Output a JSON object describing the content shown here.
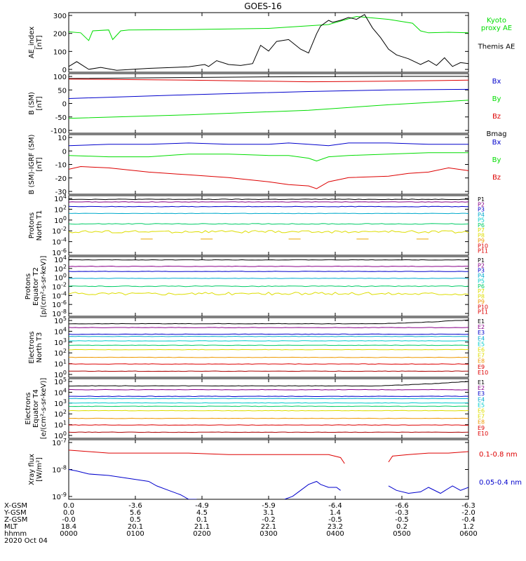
{
  "title": "GOES-16",
  "colors": {
    "black": "#000000",
    "green": "#00dd00",
    "blue": "#0000cc",
    "red": "#dd0000",
    "cyan": "#00cccc",
    "yellow": "#dddd00",
    "orange": "#ee9900",
    "purple": "#880088",
    "navy": "#000088"
  },
  "chart_data": [
    {
      "id": "ae",
      "type": "line",
      "ylabel": [
        "AE_index",
        "[nT]"
      ],
      "yticks": [
        "300",
        "200",
        "100",
        "0"
      ],
      "ylim": [
        0,
        310
      ],
      "legend": [
        {
          "lines": [
            "Kyoto",
            "proxy AE"
          ],
          "color": "#00dd00"
        },
        {
          "lines": [
            "Themis AE"
          ],
          "color": "#000000"
        }
      ],
      "series": [
        {
          "color": "#00dd00",
          "x": [
            0,
            0.03,
            0.05,
            0.06,
            0.1,
            0.11,
            0.13,
            0.15,
            0.3,
            0.5,
            0.55,
            0.65,
            0.72,
            0.8,
            0.86,
            0.88,
            0.9,
            0.95,
            1.0
          ],
          "y": [
            210,
            205,
            165,
            215,
            220,
            170,
            215,
            220,
            222,
            228,
            235,
            248,
            290,
            275,
            255,
            215,
            205,
            208,
            205
          ]
        },
        {
          "color": "#000000",
          "x": [
            0,
            0.02,
            0.05,
            0.08,
            0.12,
            0.2,
            0.3,
            0.34,
            0.35,
            0.37,
            0.4,
            0.43,
            0.46,
            0.48,
            0.5,
            0.52,
            0.55,
            0.58,
            0.6,
            0.62,
            0.63,
            0.65,
            0.66,
            0.68,
            0.7,
            0.72,
            0.74,
            0.76,
            0.78,
            0.8,
            0.82,
            0.85,
            0.88,
            0.9,
            0.92,
            0.94,
            0.96,
            0.98,
            1.0
          ],
          "y": [
            30,
            55,
            15,
            25,
            10,
            20,
            28,
            40,
            30,
            60,
            40,
            35,
            45,
            140,
            110,
            160,
            170,
            120,
            100,
            200,
            240,
            270,
            260,
            270,
            285,
            275,
            300,
            230,
            180,
            120,
            90,
            70,
            40,
            60,
            35,
            75,
            30,
            50,
            45
          ]
        }
      ]
    },
    {
      "id": "b",
      "type": "line",
      "ylabel": [
        "B (SM)",
        "[nT]"
      ],
      "yticks": [
        "100",
        "50",
        "0",
        "-50",
        "-100"
      ],
      "ylim": [
        -110,
        110
      ],
      "legend": [
        {
          "lines": [
            "Bx"
          ],
          "color": "#0000cc"
        },
        {
          "lines": [
            "By"
          ],
          "color": "#00dd00"
        },
        {
          "lines": [
            "Bz"
          ],
          "color": "#dd0000"
        },
        {
          "lines": [
            "Bmag"
          ],
          "color": "#000000"
        }
      ],
      "series": [
        {
          "color": "#000000",
          "x": [
            0,
            0.5,
            0.8,
            1.0
          ],
          "y": [
            92,
            98,
            100,
            100
          ]
        },
        {
          "color": "#dd0000",
          "x": [
            0,
            0.3,
            0.6,
            0.8,
            1.0
          ],
          "y": [
            90,
            86,
            80,
            82,
            86
          ]
        },
        {
          "color": "#0000cc",
          "x": [
            0,
            0.3,
            0.6,
            0.8,
            1.0
          ],
          "y": [
            18,
            32,
            44,
            50,
            52
          ]
        },
        {
          "color": "#00dd00",
          "x": [
            0,
            0.3,
            0.6,
            0.8,
            1.0
          ],
          "y": [
            -55,
            -42,
            -25,
            -5,
            12
          ]
        }
      ]
    },
    {
      "id": "bres",
      "type": "line",
      "ylabel": [
        "B (SM)-IGRF (SM)",
        "[nT]"
      ],
      "yticks": [
        "10",
        "0",
        "-10",
        "-20",
        "-30"
      ],
      "ylim": [
        -31,
        12
      ],
      "legend": [
        {
          "lines": [
            "Bx"
          ],
          "color": "#0000cc"
        },
        {
          "lines": [
            "By"
          ],
          "color": "#00dd00"
        },
        {
          "lines": [
            "Bz"
          ],
          "color": "#dd0000"
        }
      ],
      "series": [
        {
          "color": "#0000cc",
          "x": [
            0,
            0.1,
            0.2,
            0.3,
            0.4,
            0.5,
            0.55,
            0.6,
            0.65,
            0.7,
            0.8,
            0.9,
            1.0
          ],
          "y": [
            4,
            5,
            5,
            6,
            5,
            5,
            6,
            5,
            4,
            6,
            6,
            5,
            5
          ]
        },
        {
          "color": "#00dd00",
          "x": [
            0,
            0.1,
            0.2,
            0.3,
            0.4,
            0.5,
            0.55,
            0.6,
            0.62,
            0.65,
            0.7,
            0.8,
            0.9,
            1.0
          ],
          "y": [
            -3,
            -4,
            -4,
            -2,
            -2,
            -3,
            -3,
            -5,
            -7,
            -4,
            -3,
            -2,
            -1,
            -1
          ]
        },
        {
          "color": "#dd0000",
          "x": [
            0,
            0.03,
            0.1,
            0.2,
            0.3,
            0.4,
            0.5,
            0.55,
            0.6,
            0.62,
            0.65,
            0.7,
            0.8,
            0.85,
            0.9,
            0.95,
            1.0
          ],
          "y": [
            -13,
            -11,
            -12,
            -15,
            -17,
            -19,
            -22,
            -24,
            -25,
            -27,
            -22,
            -19,
            -18,
            -16,
            -15,
            -12,
            -14
          ]
        }
      ]
    },
    {
      "id": "pn",
      "type": "line",
      "ylabel": [
        "Protons",
        "North T1"
      ],
      "yticks": [
        "10^4",
        "10^2",
        "10^0",
        "10^-2",
        "10^-4",
        "10^-6"
      ],
      "ylim": [
        -6.8,
        4.6
      ],
      "legend": [
        {
          "lines": [
            "P1"
          ],
          "color": "#000000"
        },
        {
          "lines": [
            "P2"
          ],
          "color": "#880088"
        },
        {
          "lines": [
            "P3"
          ],
          "color": "#0000cc"
        },
        {
          "lines": [
            "P4"
          ],
          "color": "#00aacc"
        },
        {
          "lines": [
            "P5"
          ],
          "color": "#00cccc"
        },
        {
          "lines": [
            "P6"
          ],
          "color": "#00cc66"
        },
        {
          "lines": [
            "P7"
          ],
          "color": "#dddd00"
        },
        {
          "lines": [
            "P8"
          ],
          "color": "#dddd00"
        },
        {
          "lines": [
            "P9"
          ],
          "color": "#ee9900"
        },
        {
          "lines": [
            "P10"
          ],
          "color": "#dd0000"
        },
        {
          "lines": [
            "P11"
          ],
          "color": "#dd0000"
        }
      ],
      "levels": [
        {
          "color": "#000000",
          "v": 3.9,
          "jitter": 0.05
        },
        {
          "color": "#880088",
          "v": 3.4,
          "jitter": 0.05
        },
        {
          "color": "#0000cc",
          "v": 2.5,
          "jitter": 0.05
        },
        {
          "color": "#00aacc",
          "v": 1.2,
          "jitter": 0.04
        },
        {
          "color": "#00cc66",
          "v": -0.8,
          "jitter": 0.08
        },
        {
          "color": "#dddd00",
          "v": -2.3,
          "jitter": 0.25
        }
      ],
      "dashes": {
        "color": "#eeaa00",
        "v": -3.7
      }
    },
    {
      "id": "pe",
      "type": "line",
      "ylabel": [
        "Protons",
        "Equator T2",
        "[p/(cm²-s-sr-keV)]"
      ],
      "yticks": [
        "10^4",
        "10^2",
        "10^0",
        "10^-2",
        "10^-4",
        "10^-6",
        "10^-8"
      ],
      "ylim": [
        -8.5,
        4.4
      ],
      "legend": [
        {
          "lines": [
            "P1"
          ],
          "color": "#000000"
        },
        {
          "lines": [
            "P2"
          ],
          "color": "#880088"
        },
        {
          "lines": [
            "P3"
          ],
          "color": "#0000cc"
        },
        {
          "lines": [
            "P4"
          ],
          "color": "#00aacc"
        },
        {
          "lines": [
            "P5"
          ],
          "color": "#00cccc"
        },
        {
          "lines": [
            "P6"
          ],
          "color": "#00cc66"
        },
        {
          "lines": [
            "P7"
          ],
          "color": "#dddd00"
        },
        {
          "lines": [
            "P8"
          ],
          "color": "#dddd00"
        },
        {
          "lines": [
            "P9"
          ],
          "color": "#ee9900"
        },
        {
          "lines": [
            "P10"
          ],
          "color": "#dd0000"
        },
        {
          "lines": [
            "P11"
          ],
          "color": "#dd0000"
        }
      ],
      "levels": [
        {
          "color": "#000000",
          "v": 3.7,
          "jitter": 0.05
        },
        {
          "color": "#880088",
          "v": 2.3,
          "jitter": 0.05
        },
        {
          "color": "#0000cc",
          "v": 1.2,
          "jitter": 0.04
        },
        {
          "color": "#00aacc",
          "v": -0.3,
          "jitter": 0.04
        },
        {
          "color": "#00cc66",
          "v": -2.0,
          "jitter": 0.08
        },
        {
          "color": "#dddd00",
          "v": -3.6,
          "jitter": 0.3
        }
      ]
    },
    {
      "id": "en",
      "type": "line",
      "ylabel": [
        "Electrons",
        "North T3"
      ],
      "yticks": [
        "10^5",
        "10^4",
        "10^3",
        "10^2",
        "10^1",
        "10^0"
      ],
      "ylim": [
        -0.2,
        5.2
      ],
      "legend": [
        {
          "lines": [
            "E1"
          ],
          "color": "#000000"
        },
        {
          "lines": [
            "E2"
          ],
          "color": "#880088"
        },
        {
          "lines": [
            "E3"
          ],
          "color": "#0000cc"
        },
        {
          "lines": [
            "E4"
          ],
          "color": "#00aacc"
        },
        {
          "lines": [
            "E5"
          ],
          "color": "#00cccc"
        },
        {
          "lines": [
            "E6"
          ],
          "color": "#dddd00"
        },
        {
          "lines": [
            "E7"
          ],
          "color": "#dddd00"
        },
        {
          "lines": [
            "E8"
          ],
          "color": "#ee9900"
        },
        {
          "lines": [
            "E9"
          ],
          "color": "#dd0000"
        },
        {
          "lines": [
            "E10"
          ],
          "color": "#dd0000"
        }
      ],
      "levels": [
        {
          "color": "#000000",
          "v": 4.65,
          "jitter": 0.02,
          "rise": 0.35
        },
        {
          "color": "#880088",
          "v": 4.3,
          "jitter": 0.02
        },
        {
          "color": "#0000cc",
          "v": 3.7,
          "jitter": 0.02
        },
        {
          "color": "#00aacc",
          "v": 3.5,
          "jitter": 0.02
        },
        {
          "color": "#00cccc",
          "v": 3.1,
          "jitter": 0.02
        },
        {
          "color": "#00cc66",
          "v": 2.7,
          "jitter": 0.02
        },
        {
          "color": "#dddd00",
          "v": 2.3,
          "jitter": 0.02
        },
        {
          "color": "#ee9900",
          "v": 1.6,
          "jitter": 0.02
        },
        {
          "color": "#dd0000",
          "v": 1.0,
          "jitter": 0.02
        },
        {
          "color": "#aa0000",
          "v": 0.35,
          "jitter": 0.02
        }
      ]
    },
    {
      "id": "ee",
      "type": "line",
      "ylabel": [
        "Electrons",
        "Equator T4",
        "[e/(cm²-s-sr-keV)]"
      ],
      "yticks": [
        "10^5",
        "10^4",
        "10^3",
        "10^2",
        "10^1",
        "10^0"
      ],
      "ylim": [
        -0.2,
        5.2
      ],
      "legend": [
        {
          "lines": [
            "E1"
          ],
          "color": "#000000"
        },
        {
          "lines": [
            "E2"
          ],
          "color": "#880088"
        },
        {
          "lines": [
            "E3"
          ],
          "color": "#0000cc"
        },
        {
          "lines": [
            "E4"
          ],
          "color": "#00aacc"
        },
        {
          "lines": [
            "E5"
          ],
          "color": "#00cccc"
        },
        {
          "lines": [
            "E6"
          ],
          "color": "#dddd00"
        },
        {
          "lines": [
            "E7"
          ],
          "color": "#dddd00"
        },
        {
          "lines": [
            "E8"
          ],
          "color": "#ee9900"
        },
        {
          "lines": [
            "E9"
          ],
          "color": "#dd0000"
        },
        {
          "lines": [
            "E10"
          ],
          "color": "#dd0000"
        }
      ],
      "levels": [
        {
          "color": "#000000",
          "v": 4.55,
          "jitter": 0.02,
          "rise": 0.4
        },
        {
          "color": "#880088",
          "v": 4.2,
          "jitter": 0.02
        },
        {
          "color": "#0000cc",
          "v": 3.6,
          "jitter": 0.02
        },
        {
          "color": "#00aacc",
          "v": 3.4,
          "jitter": 0.02
        },
        {
          "color": "#00cccc",
          "v": 3.0,
          "jitter": 0.02
        },
        {
          "color": "#00cc66",
          "v": 2.7,
          "jitter": 0.02
        },
        {
          "color": "#dddd00",
          "v": 2.3,
          "jitter": 0.02
        },
        {
          "color": "#ee9900",
          "v": 1.6,
          "jitter": 0.02
        },
        {
          "color": "#dd0000",
          "v": 1.0,
          "jitter": 0.02
        },
        {
          "color": "#aa0000",
          "v": 0.35,
          "jitter": 0.02
        }
      ]
    },
    {
      "id": "xray",
      "type": "line",
      "ylabel": [
        "Xray flux",
        "[W/m²]"
      ],
      "yticks": [
        "10^-7",
        "10^-8",
        "10^-9"
      ],
      "ylim": [
        -9,
        -7
      ],
      "legend": [
        {
          "lines": [
            "0.1-0.8 nm"
          ],
          "color": "#dd0000"
        },
        {
          "lines": [
            "0.05-0.4 nm"
          ],
          "color": "#0000cc"
        }
      ],
      "series": [
        {
          "color": "#dd0000",
          "x": [
            0,
            0.05,
            0.1,
            0.2,
            0.3,
            0.4,
            0.5,
            0.6,
            0.65,
            0.68,
            0.69
          ],
          "y": [
            -7.35,
            -7.4,
            -7.45,
            -7.45,
            -7.45,
            -7.5,
            -7.5,
            -7.5,
            -7.5,
            -7.6,
            -7.8
          ]
        },
        {
          "color": "#dd0000",
          "x": [
            0.8,
            0.81,
            0.85,
            0.9,
            0.95,
            1.0
          ],
          "y": [
            -7.75,
            -7.55,
            -7.5,
            -7.45,
            -7.45,
            -7.4
          ]
        },
        {
          "color": "#0000cc",
          "x": [
            0,
            0.02,
            0.05,
            0.1,
            0.15,
            0.2,
            0.22,
            0.25,
            0.28,
            0.3,
            0.32
          ],
          "y": [
            -8.0,
            -8.05,
            -8.15,
            -8.2,
            -8.3,
            -8.4,
            -8.55,
            -8.7,
            -8.85,
            -9.0,
            -9.0
          ]
        },
        {
          "color": "#0000cc",
          "x": [
            0.54,
            0.56,
            0.58,
            0.6,
            0.62,
            0.63,
            0.65,
            0.67,
            0.68
          ],
          "y": [
            -9.0,
            -8.9,
            -8.7,
            -8.5,
            -8.4,
            -8.5,
            -8.6,
            -8.6,
            -8.7
          ]
        },
        {
          "color": "#0000cc",
          "x": [
            0.8,
            0.82,
            0.85,
            0.88,
            0.9,
            0.93,
            0.96,
            0.98,
            1.0
          ],
          "y": [
            -8.55,
            -8.7,
            -8.8,
            -8.75,
            -8.6,
            -8.8,
            -8.55,
            -8.7,
            -8.6
          ]
        }
      ]
    }
  ],
  "xaxis": {
    "row_labels": [
      "X-GSM",
      "Y-GSM",
      "Z-GSM",
      "MLT",
      "hhmm",
      "2020 Oct 04"
    ],
    "columns": [
      [
        "0.0",
        "0.0",
        "-0.0",
        "18.4",
        "0000"
      ],
      [
        "-3.6",
        "5.6",
        "0.5",
        "20.1",
        "0100"
      ],
      [
        "-4.9",
        "4.5",
        "0.1",
        "21.1",
        "0200"
      ],
      [
        "-5.9",
        "3.1",
        "-0.2",
        "22.1",
        "0300"
      ],
      [
        "-6.4",
        "1.4",
        "-0.5",
        "23.2",
        "0400"
      ],
      [
        "-6.6",
        "-0.3",
        "-0.5",
        "0.2",
        "0500"
      ],
      [
        "-6.3",
        "-2.0",
        "-0.4",
        "1.2",
        "0600"
      ]
    ]
  }
}
